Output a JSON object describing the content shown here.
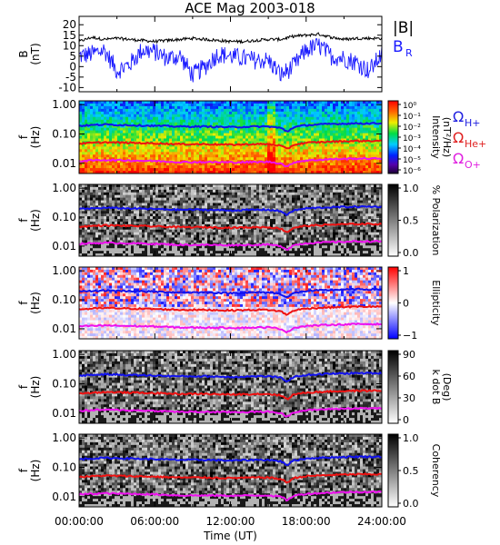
{
  "title": "ACE Mag 2003-018",
  "xlabel": "Time (UT)",
  "x_ticks": [
    "00:00:00",
    "06:00:00",
    "12:00:00",
    "18:00:00",
    "24:00:00"
  ],
  "legend": {
    "field": [
      "|B|",
      "B"
    ],
    "field_sub": [
      "",
      "R"
    ],
    "cyclotron": [
      {
        "main": "Ω",
        "sub": "H+",
        "color": "#2020e0"
      },
      {
        "main": "Ω",
        "sub": "He+",
        "color": "#e02020"
      },
      {
        "main": "Ω",
        "sub": "O+",
        "color": "#e020e0"
      }
    ]
  },
  "colors": {
    "B_total": "#000000",
    "B_R": "#1a1aff",
    "H": "#1111ee",
    "He": "#ee1111",
    "O": "#ee11ee"
  },
  "chart_data": [
    {
      "type": "line",
      "ylabel": "B",
      "yunit": "(nT)",
      "y_ticks": [
        "20",
        "15",
        "10",
        "5",
        "0",
        "-5",
        "-10"
      ],
      "ylim": [
        -12,
        24
      ],
      "xlim_hours": [
        0,
        24
      ],
      "series": [
        {
          "name": "|B|",
          "x": [
            0,
            1,
            2,
            3,
            4,
            5,
            6,
            7,
            8,
            9,
            10,
            11,
            12,
            13,
            14,
            15,
            16,
            17,
            18,
            19,
            20,
            21,
            22,
            23,
            24
          ],
          "values": [
            12,
            14,
            13,
            13.5,
            13,
            12.5,
            12,
            12.5,
            13,
            13.5,
            13,
            12.5,
            12,
            12,
            12.5,
            13,
            13,
            14.5,
            15,
            15.5,
            14,
            13,
            13.5,
            13.5,
            13.5
          ]
        },
        {
          "name": "B_R",
          "x": [
            0,
            1,
            2,
            3,
            4,
            5,
            6,
            7,
            8,
            9,
            10,
            11,
            12,
            13,
            14,
            15,
            16,
            17,
            18,
            19,
            20,
            21,
            22,
            23,
            24
          ],
          "values": [
            5,
            6,
            8,
            -2,
            1,
            8,
            7,
            4,
            5,
            -4,
            0,
            6,
            5,
            4,
            3,
            3,
            -4,
            0,
            8,
            10,
            5,
            4,
            2,
            -2,
            6
          ]
        }
      ]
    },
    {
      "type": "heatmap",
      "ylabel": "f",
      "yunit": "(Hz)",
      "y_ticks": [
        "1.00",
        "0.10",
        "0.01"
      ],
      "colorbar_label": "Intensity",
      "colorbar_unit": "(nT²/Hz)",
      "colorbar_ticks": [
        "10⁰",
        "10⁻¹",
        "10⁻²",
        "10⁻³",
        "10⁻⁴",
        "10⁻⁵",
        "10⁻⁶"
      ]
    },
    {
      "type": "heatmap",
      "ylabel": "f",
      "yunit": "(Hz)",
      "y_ticks": [
        "1.00",
        "0.10",
        "0.01"
      ],
      "colorbar_label": "% Polarization",
      "colorbar_ticks": [
        "1.0",
        "0.5",
        "0.0"
      ]
    },
    {
      "type": "heatmap",
      "ylabel": "f",
      "yunit": "(Hz)",
      "y_ticks": [
        "1.00",
        "0.10",
        "0.01"
      ],
      "colorbar_label": "Ellipticity",
      "colorbar_ticks": [
        "1",
        "0",
        "−1"
      ]
    },
    {
      "type": "heatmap",
      "ylabel": "f",
      "yunit": "(Hz)",
      "y_ticks": [
        "1.00",
        "0.10",
        "0.01"
      ],
      "colorbar_label": "k dot B",
      "colorbar_unit": "(Deg)",
      "colorbar_ticks": [
        "90",
        "60",
        "30",
        "0"
      ]
    },
    {
      "type": "heatmap",
      "ylabel": "f",
      "yunit": "(Hz)",
      "y_ticks": [
        "1.00",
        "0.10",
        "0.01"
      ],
      "colorbar_label": "Coherency",
      "colorbar_ticks": [
        "1.0",
        "0.5",
        "0.0"
      ]
    }
  ],
  "gyro_lines": {
    "x_hours": [
      0,
      2,
      4,
      6,
      8,
      10,
      12,
      14,
      15,
      16,
      16.5,
      17,
      18,
      20,
      22,
      24
    ],
    "H_hz": [
      0.19,
      0.21,
      0.2,
      0.19,
      0.18,
      0.18,
      0.17,
      0.18,
      0.18,
      0.16,
      0.12,
      0.17,
      0.2,
      0.22,
      0.23,
      0.23
    ],
    "He_hz": [
      0.047,
      0.052,
      0.05,
      0.048,
      0.045,
      0.045,
      0.043,
      0.045,
      0.045,
      0.04,
      0.03,
      0.043,
      0.05,
      0.055,
      0.058,
      0.058
    ],
    "O_hz": [
      0.012,
      0.013,
      0.0125,
      0.012,
      0.011,
      0.011,
      0.0108,
      0.011,
      0.0112,
      0.01,
      0.0075,
      0.0108,
      0.0125,
      0.0138,
      0.0145,
      0.0145
    ]
  }
}
